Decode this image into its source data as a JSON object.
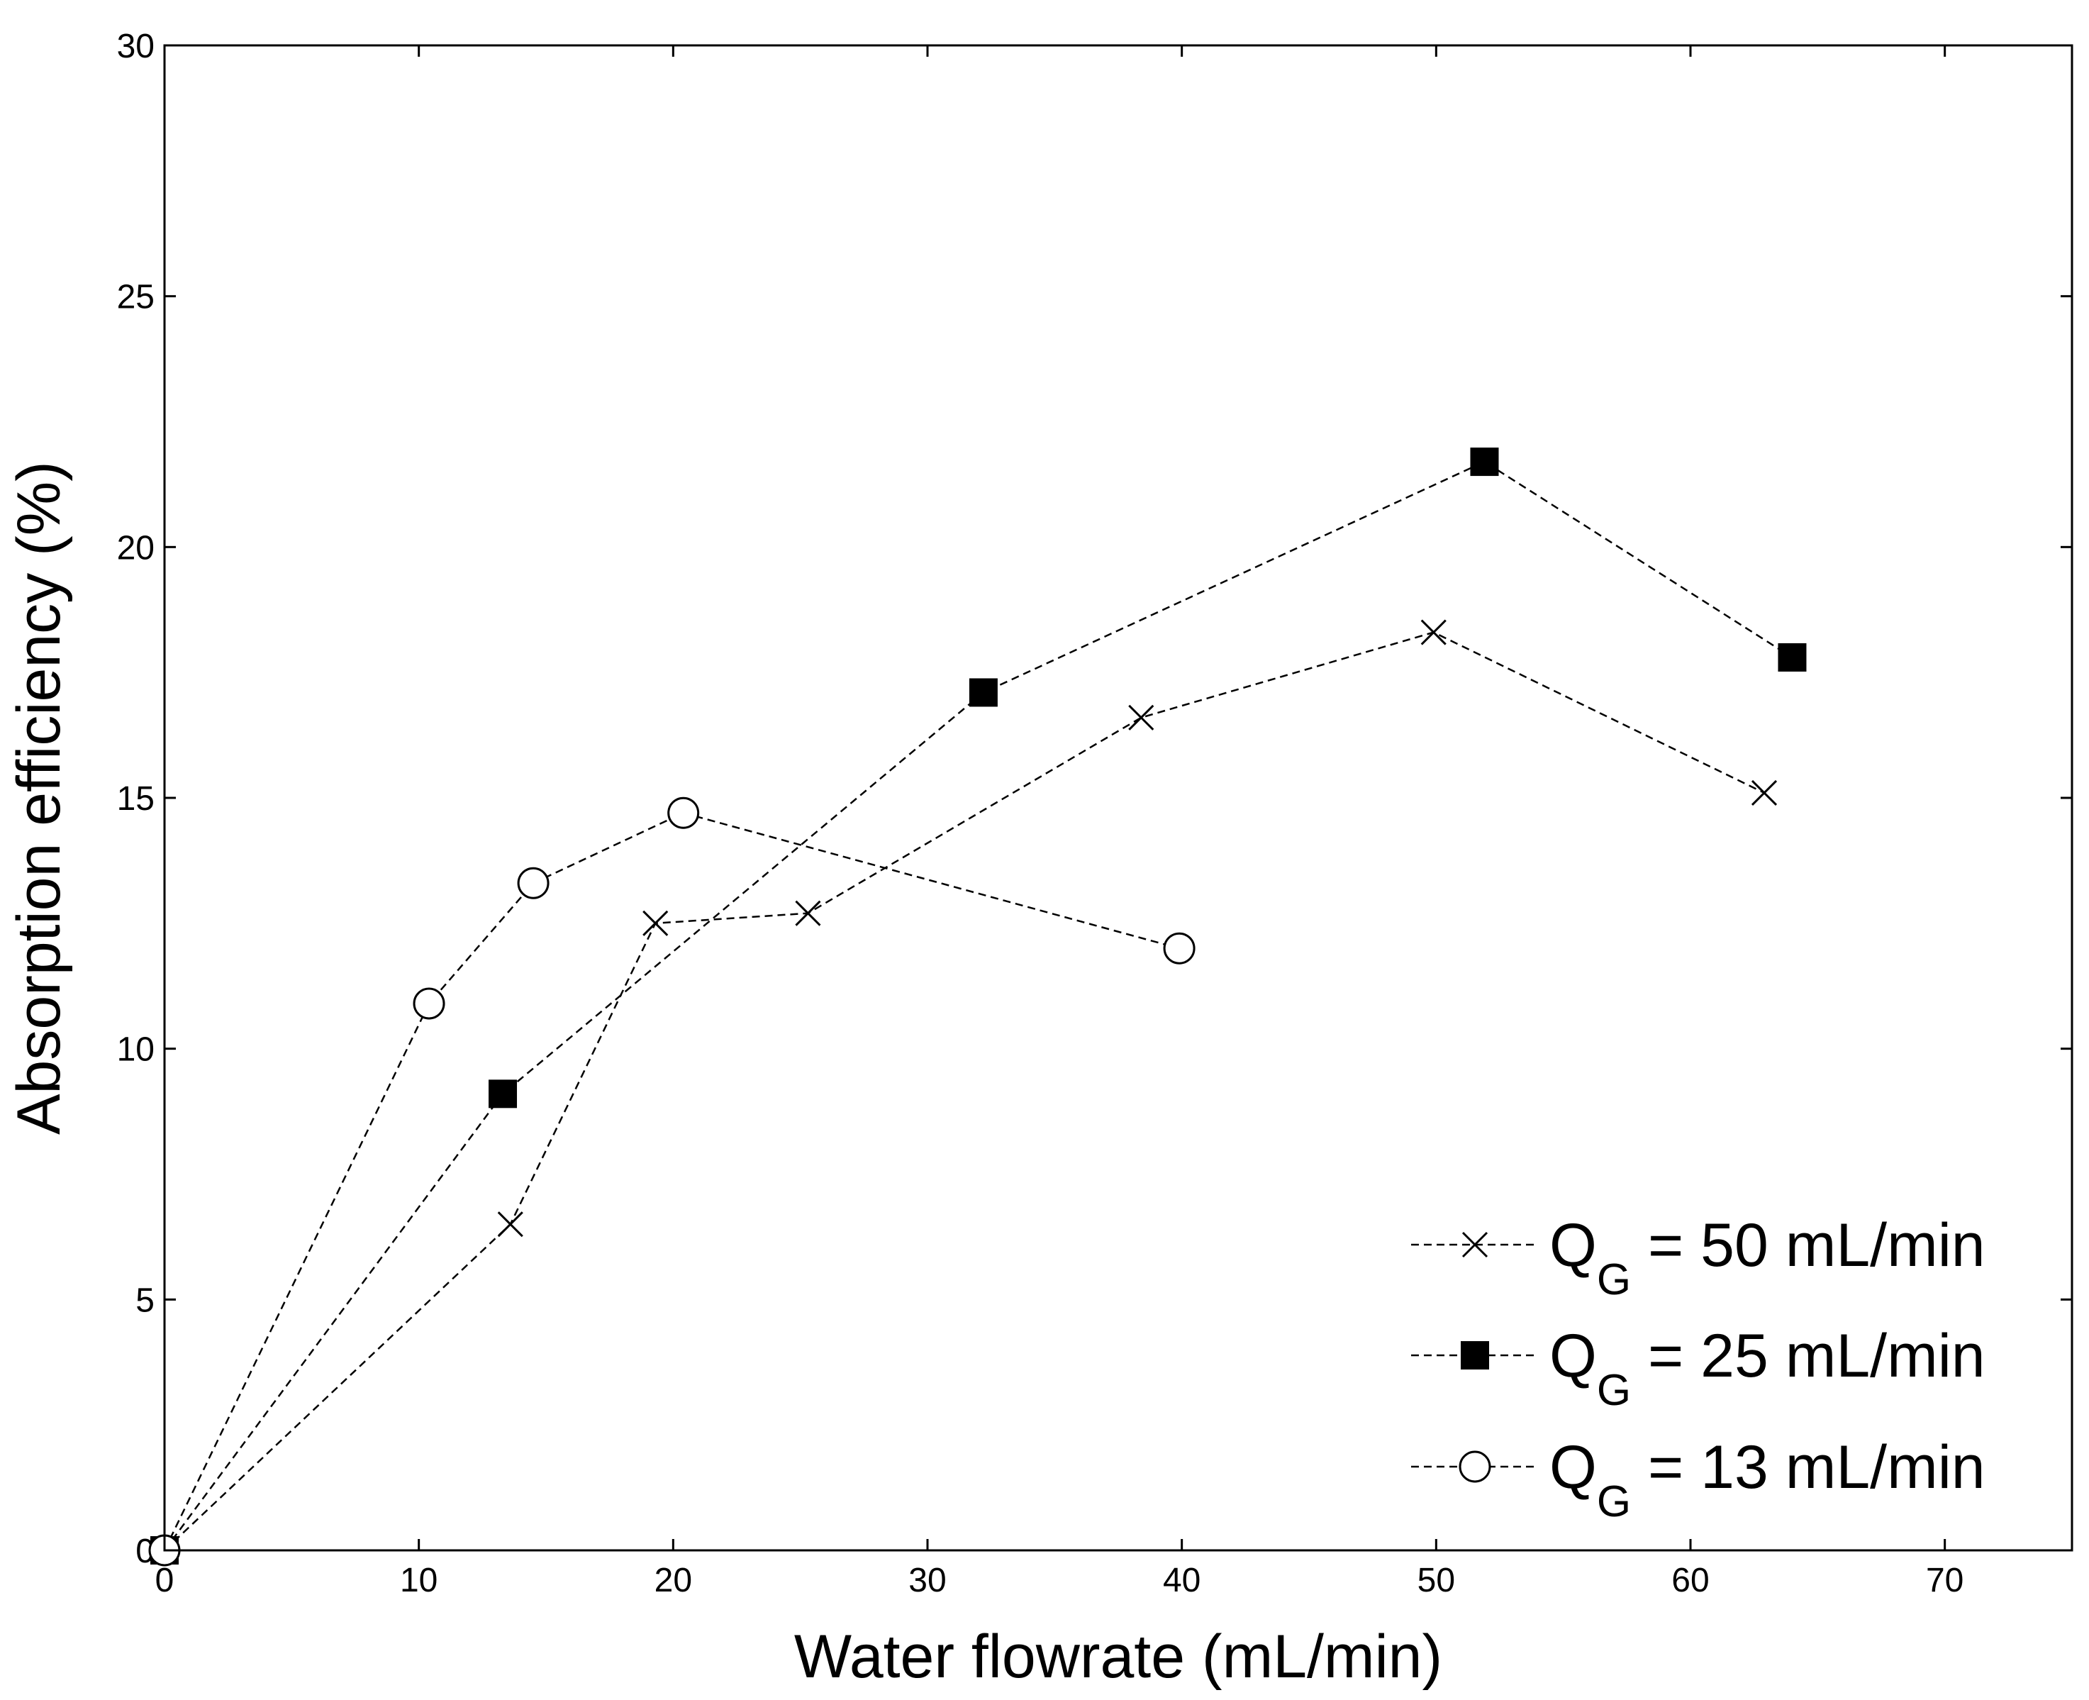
{
  "chart_data": {
    "type": "line",
    "title": "",
    "xlabel": "Water flowrate (mL/min)",
    "ylabel": "Absorption efficiency (%)",
    "xlim": [
      0,
      75
    ],
    "ylim": [
      0,
      30
    ],
    "xticks": [
      0,
      10,
      20,
      30,
      40,
      50,
      60,
      70
    ],
    "yticks": [
      0,
      5,
      10,
      15,
      20,
      25,
      30
    ],
    "legend_position": "bottom-right",
    "series": [
      {
        "name": "QG = 50 mL/min",
        "label_main": "Q",
        "label_sub": "G",
        "label_rest": " = 50 mL/min",
        "marker": "x",
        "line": "dashed",
        "x": [
          0,
          13.6,
          19.3,
          25.3,
          38.4,
          49.9,
          62.9
        ],
        "y": [
          0,
          6.5,
          12.5,
          12.7,
          16.6,
          18.3,
          15.1
        ]
      },
      {
        "name": "QG = 25 mL/min",
        "label_main": "Q",
        "label_sub": "G",
        "label_rest": " = 25 mL/min",
        "marker": "filled-square",
        "line": "dashed",
        "x": [
          0,
          13.3,
          32.2,
          51.9,
          64.0
        ],
        "y": [
          0,
          9.1,
          17.1,
          21.7,
          17.8
        ]
      },
      {
        "name": "QG = 13 mL/min",
        "label_main": "Q",
        "label_sub": "G",
        "label_rest": " = 13 mL/min",
        "marker": "open-circle",
        "line": "dashed",
        "x": [
          0,
          10.4,
          14.5,
          20.4,
          39.9
        ],
        "y": [
          0,
          10.9,
          13.3,
          14.7,
          12.0
        ]
      }
    ]
  }
}
